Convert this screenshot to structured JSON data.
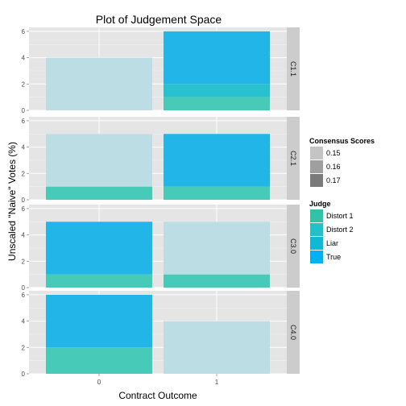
{
  "chart_data": {
    "type": "bar",
    "title": "Plot of Judgement Space",
    "xlabel": "Contract Outcome",
    "ylabel": "Unscaled \"Naive\" Votes (%)",
    "categories": [
      "0",
      "1"
    ],
    "y_ticks": [
      0,
      2,
      4,
      6
    ],
    "ylim": [
      0,
      6.3
    ],
    "grid": true,
    "legend_position": "right",
    "facets": [
      {
        "label": "C1.1",
        "bars": [
          {
            "x": "0",
            "segments": [
              {
                "judge": "Liar",
                "from": 0,
                "to": 4
              }
            ]
          },
          {
            "x": "1",
            "segments": [
              {
                "judge": "Distort 1",
                "from": 0,
                "to": 1
              },
              {
                "judge": "Distort 2",
                "from": 1,
                "to": 2
              },
              {
                "judge": "True",
                "from": 2,
                "to": 6
              }
            ]
          }
        ]
      },
      {
        "label": "C2.1",
        "bars": [
          {
            "x": "0",
            "segments": [
              {
                "judge": "Distort 1",
                "from": 0,
                "to": 1
              },
              {
                "judge": "Liar",
                "from": 1,
                "to": 5
              }
            ]
          },
          {
            "x": "1",
            "segments": [
              {
                "judge": "Distort 1",
                "from": 0,
                "to": 1
              },
              {
                "judge": "True",
                "from": 1,
                "to": 5
              }
            ]
          }
        ]
      },
      {
        "label": "C3.0",
        "bars": [
          {
            "x": "0",
            "segments": [
              {
                "judge": "Distort 1",
                "from": 0,
                "to": 1
              },
              {
                "judge": "True",
                "from": 1,
                "to": 5
              }
            ]
          },
          {
            "x": "1",
            "segments": [
              {
                "judge": "Distort 1",
                "from": 0,
                "to": 1
              },
              {
                "judge": "Liar",
                "from": 1,
                "to": 5
              }
            ]
          }
        ]
      },
      {
        "label": "C4.0",
        "bars": [
          {
            "x": "0",
            "segments": [
              {
                "judge": "Distort 1",
                "from": 0,
                "to": 2
              },
              {
                "judge": "True",
                "from": 2,
                "to": 6
              }
            ]
          },
          {
            "x": "1",
            "segments": [
              {
                "judge": "Liar",
                "from": 0,
                "to": 4
              }
            ]
          }
        ]
      }
    ],
    "legends": [
      {
        "title": "Consensus Scores",
        "entries": [
          {
            "label": "0.15",
            "color": "#c4c4c4"
          },
          {
            "label": "0.16",
            "color": "#9f9f9f"
          },
          {
            "label": "0.17",
            "color": "#7a7a7a"
          }
        ]
      },
      {
        "title": "Judge",
        "entries": [
          {
            "label": "Distort 1",
            "color": "#2fc4a7"
          },
          {
            "label": "Distort 2",
            "color": "#1ec2c8"
          },
          {
            "label": "Liar",
            "color": "#0fb8d4"
          },
          {
            "label": "True",
            "color": "#00b0f6"
          }
        ]
      }
    ],
    "fill_colors": {
      "Distort 1": "#47cbb8",
      "Distort 2": "#29c0d0",
      "Liar": "#bcdde4",
      "True": "#22b5e8"
    }
  }
}
